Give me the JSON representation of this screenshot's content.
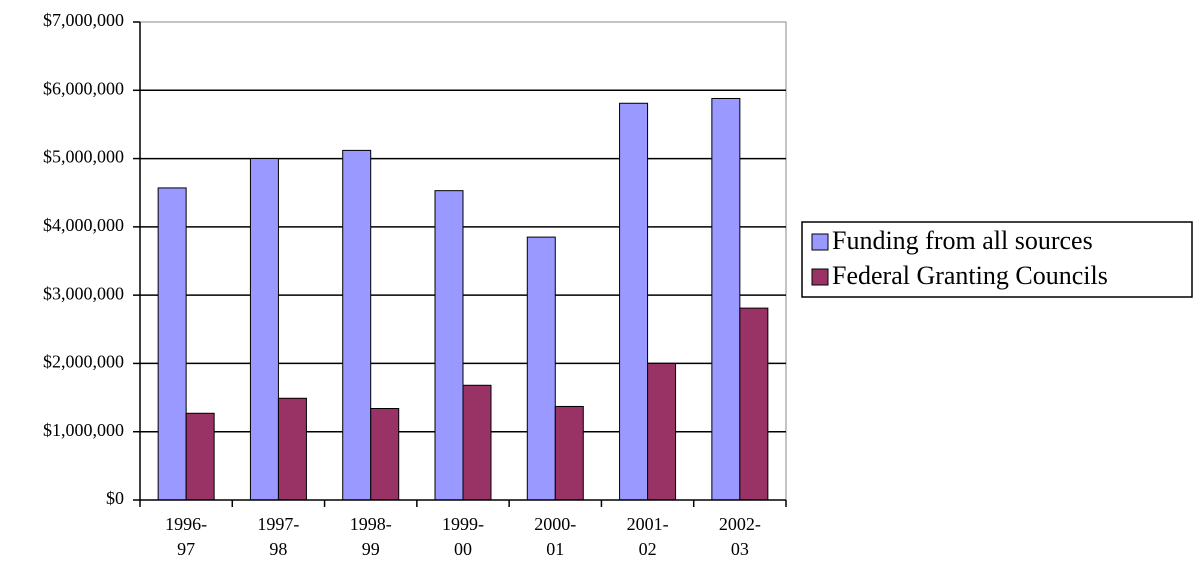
{
  "chart_data": {
    "type": "bar",
    "categories": [
      "1996-\n97",
      "1997-\n98",
      "1998-\n99",
      "1999-\n00",
      "2000-\n01",
      "2001-\n02",
      "2002-\n03"
    ],
    "series": [
      {
        "name": "Funding from all sources",
        "color": "#9999ff",
        "values": [
          4570000,
          5000000,
          5120000,
          4530000,
          3850000,
          5810000,
          5880000
        ]
      },
      {
        "name": "Federal Granting Councils",
        "color": "#993366",
        "values": [
          1270000,
          1490000,
          1340000,
          1680000,
          1370000,
          2000000,
          2810000
        ]
      }
    ],
    "ylim": [
      0,
      7000000
    ],
    "yticks": [
      {
        "value": 0,
        "label": "$0"
      },
      {
        "value": 1000000,
        "label": "$1,000,000"
      },
      {
        "value": 2000000,
        "label": "$2,000,000"
      },
      {
        "value": 3000000,
        "label": "$3,000,000"
      },
      {
        "value": 4000000,
        "label": "$4,000,000"
      },
      {
        "value": 5000000,
        "label": "$5,000,000"
      },
      {
        "value": 6000000,
        "label": "$6,000,000"
      },
      {
        "value": 7000000,
        "label": "$7,000,000"
      }
    ],
    "grid": true,
    "legend": "right"
  }
}
